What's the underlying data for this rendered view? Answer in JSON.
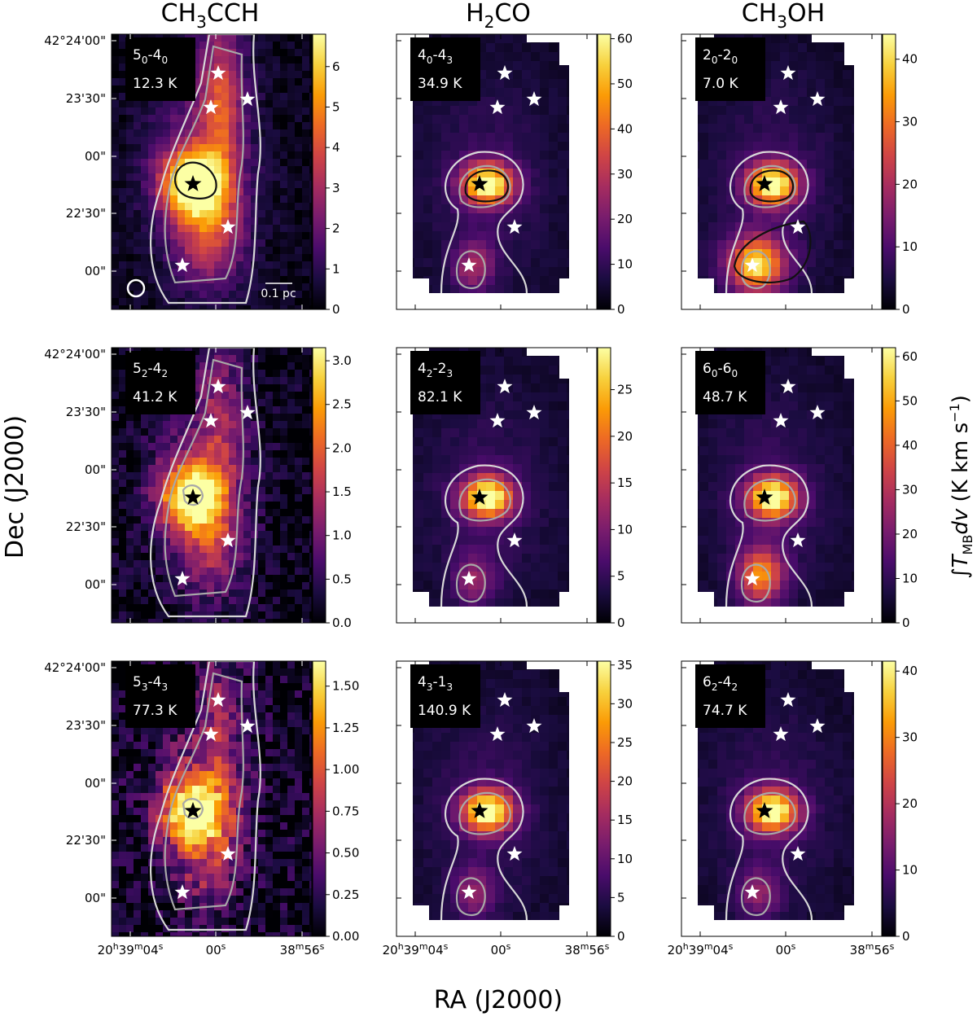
{
  "chart_data": {
    "type": "heatmap",
    "columns": [
      "CH3CCH",
      "H2CO",
      "CH3OH"
    ],
    "column_titles": [
      {
        "base": "CH",
        "sub1": "3",
        "mid": "CCH",
        "sub2": ""
      },
      {
        "base": "H",
        "sub1": "2",
        "mid": "CO",
        "sub2": ""
      },
      {
        "base": "CH",
        "sub1": "3",
        "mid": "OH",
        "sub2": ""
      }
    ],
    "ylabel": "Dec (J2000)",
    "xlabel": "RA (J2000)",
    "colorbar_label": "∫T_MB dv (K km s^-1)",
    "colormap": "inferno",
    "y_tick_labels": [
      "42°24'00\"",
      "23'30\"",
      "00\"",
      "22'30\"",
      "00\""
    ],
    "x_tick_labels": [
      {
        "base": "20",
        "h": "h",
        "m1": "39",
        "mm": "m",
        "s1": "04",
        "ss": "s"
      },
      {
        "base": "00",
        "ss": "s"
      },
      {
        "base": "38",
        "mm": "m",
        "s1": "56",
        "ss": "s"
      }
    ],
    "scale_bar": "0.1 pc",
    "panels": [
      {
        "id": "r1c1",
        "molecule": "CH3CCH",
        "transition": {
          "a": "5",
          "as": "0",
          "b": "4",
          "bs": "0"
        },
        "energy": "12.3 K",
        "vmax": 6.8,
        "ticks": [
          "0",
          "1",
          "2",
          "3",
          "4",
          "5",
          "6"
        ],
        "tick_values": [
          0,
          1,
          2,
          3,
          4,
          5,
          6
        ]
      },
      {
        "id": "r1c2",
        "molecule": "H2CO",
        "transition": {
          "a": "4",
          "as": "0",
          "b": "4",
          "bs": "3"
        },
        "energy": "34.9 K",
        "vmax": 61,
        "ticks": [
          "0",
          "10",
          "20",
          "30",
          "40",
          "50",
          "60"
        ],
        "tick_values": [
          0,
          10,
          20,
          30,
          40,
          50,
          60
        ]
      },
      {
        "id": "r1c3",
        "molecule": "CH3OH",
        "transition": {
          "a": "2",
          "as": "0",
          "b": "2",
          "bs": "0"
        },
        "energy": "7.0 K",
        "vmax": 44,
        "ticks": [
          "0",
          "10",
          "20",
          "30",
          "40"
        ],
        "tick_values": [
          0,
          10,
          20,
          30,
          40
        ]
      },
      {
        "id": "r2c1",
        "molecule": "CH3CCH",
        "transition": {
          "a": "5",
          "as": "2",
          "b": "4",
          "bs": "2"
        },
        "energy": "41.2 K",
        "vmax": 3.15,
        "ticks": [
          "0.0",
          "0.5",
          "1.0",
          "1.5",
          "2.0",
          "2.5",
          "3.0"
        ],
        "tick_values": [
          0,
          0.5,
          1,
          1.5,
          2,
          2.5,
          3
        ]
      },
      {
        "id": "r2c2",
        "molecule": "H2CO",
        "transition": {
          "a": "4",
          "as": "2",
          "b": "2",
          "bs": "3"
        },
        "energy": "82.1 K",
        "vmax": 29.5,
        "ticks": [
          "0",
          "5",
          "10",
          "15",
          "20",
          "25"
        ],
        "tick_values": [
          0,
          5,
          10,
          15,
          20,
          25
        ]
      },
      {
        "id": "r2c3",
        "molecule": "CH3OH",
        "transition": {
          "a": "6",
          "as": "0",
          "b": "6",
          "bs": "0"
        },
        "energy": "48.7 K",
        "vmax": 62,
        "ticks": [
          "0",
          "10",
          "20",
          "30",
          "40",
          "50",
          "60"
        ],
        "tick_values": [
          0,
          10,
          20,
          30,
          40,
          50,
          60
        ]
      },
      {
        "id": "r3c1",
        "molecule": "CH3CCH",
        "transition": {
          "a": "5",
          "as": "3",
          "b": "4",
          "bs": "3"
        },
        "energy": "77.3 K",
        "vmax": 1.65,
        "ticks": [
          "0.00",
          "0.25",
          "0.50",
          "0.75",
          "1.00",
          "1.25",
          "1.50"
        ],
        "tick_values": [
          0,
          0.25,
          0.5,
          0.75,
          1,
          1.25,
          1.5
        ]
      },
      {
        "id": "r3c2",
        "molecule": "H2CO",
        "transition": {
          "a": "4",
          "as": "3",
          "b": "1",
          "bs": "3"
        },
        "energy": "140.9 K",
        "vmax": 35.5,
        "ticks": [
          "0",
          "5",
          "10",
          "15",
          "20",
          "25",
          "30",
          "35"
        ],
        "tick_values": [
          0,
          5,
          10,
          15,
          20,
          25,
          30,
          35
        ]
      },
      {
        "id": "r3c3",
        "molecule": "CH3OH",
        "transition": {
          "a": "6",
          "as": "2",
          "b": "4",
          "bs": "2"
        },
        "energy": "74.7 K",
        "vmax": 41.5,
        "ticks": [
          "0",
          "10",
          "20",
          "30",
          "40"
        ],
        "tick_values": [
          0,
          10,
          20,
          30,
          40
        ]
      }
    ],
    "colors": {
      "star_main": "#000000",
      "star_other": "#ffffff",
      "contour_light": "#d8d8d8",
      "contour_mid": "#a8a8a8",
      "contour_dark": "#111111",
      "inferno": [
        "#000004",
        "#1b0c41",
        "#4a0c6b",
        "#781c6d",
        "#a52c60",
        "#cf4446",
        "#ed6925",
        "#fb9b06",
        "#f7d13d",
        "#fcffa4"
      ]
    }
  }
}
